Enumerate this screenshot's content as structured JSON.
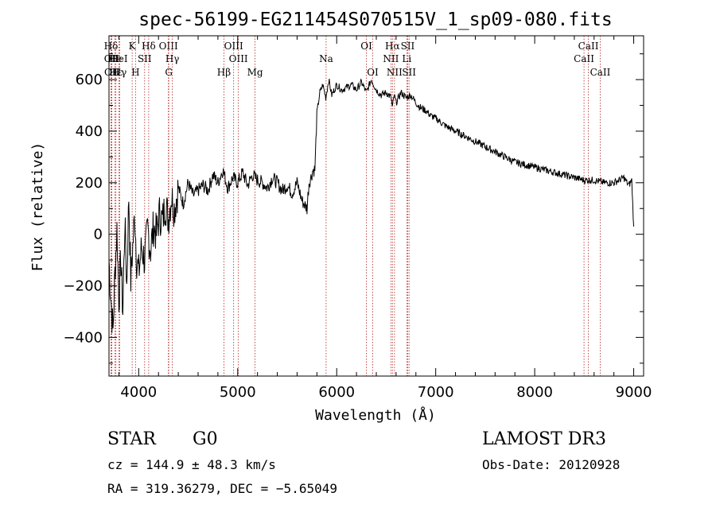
{
  "chart_data": {
    "type": "line",
    "title": "spec-56199-EG211454S070515V_1_sp09-080.fits",
    "xlabel": "Wavelength (Å)",
    "ylabel": "Flux (relative)",
    "xlim": [
      3700,
      9100
    ],
    "ylim": [
      -550,
      770
    ],
    "x_ticks": [
      4000,
      5000,
      6000,
      7000,
      8000,
      9000
    ],
    "x_tick_labels": [
      "4000",
      "5000",
      "6000",
      "7000",
      "8000",
      "9000"
    ],
    "y_ticks": [
      -400,
      -200,
      0,
      200,
      400,
      600
    ],
    "y_tick_labels": [
      "−400",
      "−200",
      "0",
      "200",
      "400",
      "600"
    ],
    "grid": false,
    "series": [
      {
        "name": "flux",
        "x": [
          3700,
          3720,
          3740,
          3760,
          3780,
          3800,
          3820,
          3840,
          3860,
          3880,
          3900,
          3920,
          3940,
          3960,
          3980,
          4000,
          4030,
          4060,
          4090,
          4120,
          4150,
          4180,
          4210,
          4240,
          4270,
          4300,
          4330,
          4360,
          4400,
          4450,
          4500,
          4550,
          4600,
          4650,
          4700,
          4750,
          4800,
          4850,
          4900,
          4950,
          5000,
          5050,
          5100,
          5150,
          5200,
          5250,
          5300,
          5350,
          5400,
          5450,
          5500,
          5550,
          5600,
          5650,
          5700,
          5720,
          5740,
          5760,
          5780,
          5800,
          5830,
          5860,
          5890,
          5920,
          5950,
          6000,
          6050,
          6100,
          6150,
          6200,
          6250,
          6300,
          6350,
          6400,
          6450,
          6500,
          6550,
          6563,
          6580,
          6600,
          6650,
          6700,
          6750,
          6800,
          6850,
          6900,
          6950,
          7000,
          7100,
          7200,
          7300,
          7400,
          7500,
          7600,
          7700,
          7800,
          7900,
          8000,
          8100,
          8200,
          8300,
          8400,
          8500,
          8600,
          8700,
          8800,
          8900,
          8950,
          8980,
          9000
        ],
        "values": [
          -100,
          -250,
          -380,
          -150,
          20,
          -250,
          -100,
          -300,
          50,
          -200,
          150,
          -180,
          -50,
          80,
          -100,
          -150,
          -50,
          -100,
          20,
          -60,
          30,
          0,
          80,
          50,
          120,
          60,
          150,
          100,
          180,
          120,
          200,
          150,
          170,
          190,
          170,
          230,
          200,
          250,
          180,
          220,
          200,
          240,
          190,
          230,
          210,
          200,
          180,
          220,
          200,
          170,
          190,
          160,
          200,
          130,
          100,
          200,
          220,
          250,
          250,
          470,
          550,
          580,
          530,
          600,
          540,
          580,
          560,
          570,
          580,
          560,
          590,
          550,
          600,
          560,
          540,
          550,
          530,
          490,
          540,
          510,
          550,
          530,
          540,
          510,
          490,
          480,
          460,
          450,
          420,
          400,
          380,
          360,
          340,
          320,
          300,
          280,
          270,
          260,
          250,
          240,
          230,
          220,
          210,
          210,
          200,
          200,
          220,
          190,
          210,
          30
        ]
      }
    ],
    "emission_lines": [
      {
        "label": "Hδ",
        "x": 3720,
        "row": 1
      },
      {
        "label": "OII",
        "x": 3727,
        "row": 2
      },
      {
        "label": "OII",
        "x": 3729,
        "row": 3
      },
      {
        "label": "He",
        "x": 3760,
        "row": 2
      },
      {
        "label": "Hε",
        "x": 3770,
        "row": 3
      },
      {
        "label": "HeI",
        "x": 3800,
        "row": 2
      },
      {
        "label": "Hγ",
        "x": 3808,
        "row": 3
      },
      {
        "label": "K",
        "x": 3934,
        "row": 1
      },
      {
        "label": "H",
        "x": 3968,
        "row": 3
      },
      {
        "label": "SII",
        "x": 4060,
        "row": 2
      },
      {
        "label": "Hδ",
        "x": 4101,
        "row": 1
      },
      {
        "label": "OIII",
        "x": 4300,
        "row": 1
      },
      {
        "label": "Hγ",
        "x": 4340,
        "row": 2
      },
      {
        "label": "G",
        "x": 4304,
        "row": 3
      },
      {
        "label": "Hβ",
        "x": 4861,
        "row": 3
      },
      {
        "label": "OIII",
        "x": 4959,
        "row": 1
      },
      {
        "label": "OIII",
        "x": 5007,
        "row": 2
      },
      {
        "label": "Mg",
        "x": 5175,
        "row": 3
      },
      {
        "label": "Na",
        "x": 5893,
        "row": 2
      },
      {
        "label": "OI",
        "x": 6300,
        "row": 1
      },
      {
        "label": "OI",
        "x": 6364,
        "row": 3
      },
      {
        "label": "Hα",
        "x": 6563,
        "row": 1
      },
      {
        "label": "NII",
        "x": 6548,
        "row": 2
      },
      {
        "label": "NII",
        "x": 6584,
        "row": 3
      },
      {
        "label": "SII",
        "x": 6717,
        "row": 1
      },
      {
        "label": "Li",
        "x": 6708,
        "row": 2
      },
      {
        "label": "SII",
        "x": 6731,
        "row": 3
      },
      {
        "label": "CaII",
        "x": 8542,
        "row": 1
      },
      {
        "label": "CaII",
        "x": 8498,
        "row": 2
      },
      {
        "label": "CaII",
        "x": 8662,
        "row": 3
      }
    ]
  },
  "info": {
    "object_class": "STAR",
    "subclass": "G0",
    "survey": "LAMOST DR3",
    "redshift": "cz = 144.9 ± 48.3 km/s",
    "obs_date": "Obs-Date: 20120928",
    "coords": "RA = 319.36279, DEC =  −5.65049"
  }
}
